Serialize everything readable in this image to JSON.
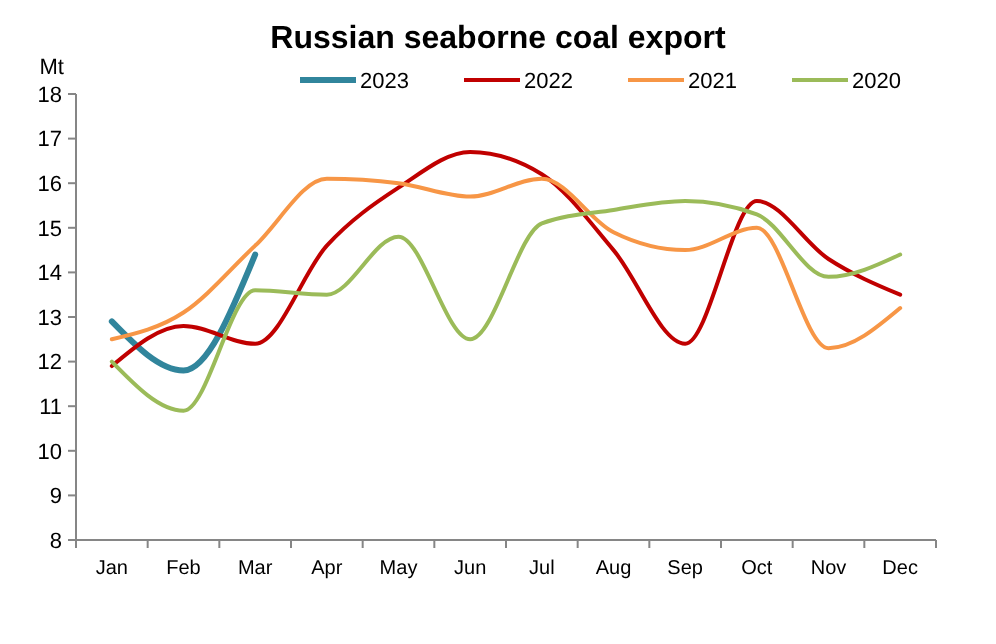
{
  "chart_data": {
    "type": "line",
    "title": "Russian seaborne coal export",
    "ylabel": "Mt",
    "categories": [
      "Jan",
      "Feb",
      "Mar",
      "Apr",
      "May",
      "Jun",
      "Jul",
      "Aug",
      "Sep",
      "Oct",
      "Nov",
      "Dec"
    ],
    "series": [
      {
        "name": "2023",
        "color": "#31859c",
        "values": [
          12.9,
          11.8,
          14.4,
          null,
          null,
          null,
          null,
          null,
          null,
          null,
          null,
          null
        ]
      },
      {
        "name": "2022",
        "color": "#c00000",
        "values": [
          11.9,
          12.8,
          12.4,
          14.6,
          15.9,
          16.7,
          16.2,
          14.5,
          12.4,
          15.6,
          14.3,
          13.5
        ]
      },
      {
        "name": "2021",
        "color": "#f79646",
        "values": [
          12.5,
          13.1,
          14.6,
          16.1,
          16.0,
          15.7,
          16.1,
          14.9,
          14.5,
          15.0,
          12.3,
          13.2
        ]
      },
      {
        "name": "2020",
        "color": "#9bbb59",
        "values": [
          12.0,
          10.9,
          13.6,
          13.5,
          14.8,
          12.5,
          15.1,
          15.4,
          15.6,
          15.3,
          13.9,
          14.4
        ]
      }
    ],
    "ylim": [
      8,
      18
    ],
    "yticks": [
      8,
      9,
      10,
      11,
      12,
      13,
      14,
      15,
      16,
      17,
      18
    ],
    "grid": false,
    "legend": "top",
    "marker": "none",
    "line_style": "solid"
  }
}
